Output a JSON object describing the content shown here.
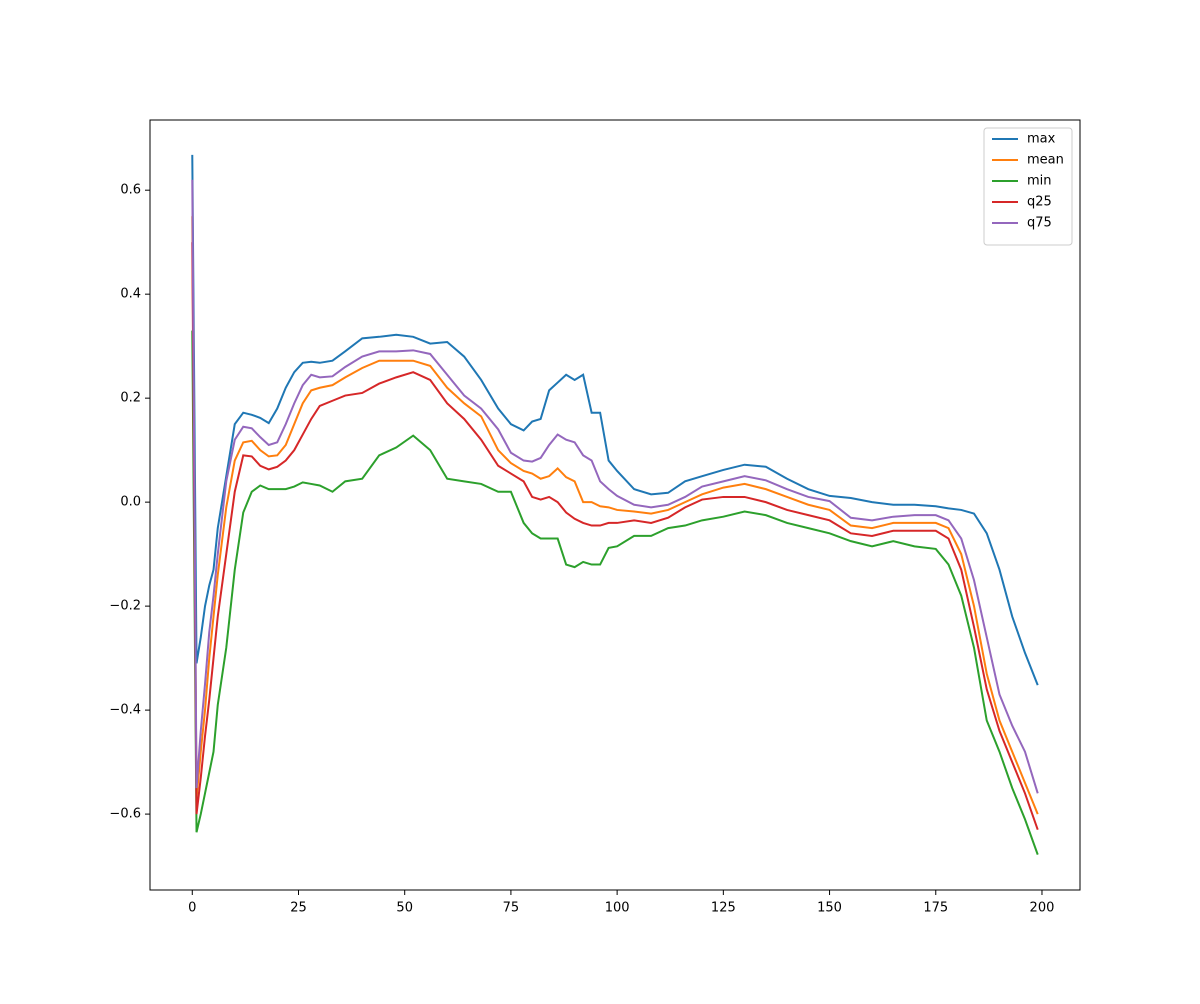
{
  "chart_data": {
    "type": "line",
    "x": [
      0,
      1,
      2,
      3,
      4,
      5,
      6,
      8,
      10,
      12,
      14,
      16,
      18,
      20,
      22,
      24,
      26,
      28,
      30,
      33,
      36,
      40,
      44,
      48,
      52,
      56,
      60,
      64,
      68,
      72,
      75,
      78,
      80,
      82,
      84,
      86,
      88,
      90,
      92,
      94,
      96,
      98,
      100,
      104,
      108,
      112,
      116,
      120,
      125,
      130,
      135,
      140,
      145,
      150,
      155,
      160,
      165,
      170,
      175,
      178,
      181,
      184,
      187,
      190,
      193,
      196,
      199
    ],
    "series": [
      {
        "name": "max",
        "color": "#1f77b4",
        "values": [
          0.668,
          -0.31,
          -0.26,
          -0.2,
          -0.16,
          -0.13,
          -0.05,
          0.05,
          0.15,
          0.172,
          0.168,
          0.162,
          0.152,
          0.18,
          0.22,
          0.25,
          0.268,
          0.27,
          0.268,
          0.272,
          0.29,
          0.315,
          0.318,
          0.322,
          0.318,
          0.305,
          0.308,
          0.28,
          0.235,
          0.18,
          0.15,
          0.138,
          0.155,
          0.16,
          0.215,
          0.23,
          0.245,
          0.235,
          0.245,
          0.172,
          0.172,
          0.08,
          0.06,
          0.025,
          0.015,
          0.018,
          0.04,
          0.05,
          0.062,
          0.072,
          0.068,
          0.045,
          0.025,
          0.012,
          0.008,
          0.0,
          -0.005,
          -0.005,
          -0.008,
          -0.012,
          -0.015,
          -0.022,
          -0.06,
          -0.13,
          -0.22,
          -0.29,
          -0.352
        ]
      },
      {
        "name": "mean",
        "color": "#ff7f0e",
        "values": [
          0.55,
          -0.57,
          -0.48,
          -0.4,
          -0.3,
          -0.22,
          -0.14,
          -0.01,
          0.08,
          0.115,
          0.118,
          0.1,
          0.088,
          0.09,
          0.11,
          0.15,
          0.19,
          0.215,
          0.22,
          0.225,
          0.24,
          0.258,
          0.272,
          0.272,
          0.272,
          0.262,
          0.22,
          0.19,
          0.165,
          0.1,
          0.075,
          0.06,
          0.055,
          0.045,
          0.05,
          0.065,
          0.048,
          0.04,
          0.0,
          0.0,
          -0.008,
          -0.01,
          -0.015,
          -0.018,
          -0.022,
          -0.015,
          0.0,
          0.015,
          0.028,
          0.035,
          0.025,
          0.01,
          -0.005,
          -0.015,
          -0.045,
          -0.05,
          -0.04,
          -0.04,
          -0.04,
          -0.05,
          -0.1,
          -0.2,
          -0.33,
          -0.42,
          -0.48,
          -0.54,
          -0.6
        ]
      },
      {
        "name": "min",
        "color": "#2ca02c",
        "values": [
          0.33,
          -0.635,
          -0.6,
          -0.56,
          -0.52,
          -0.48,
          -0.39,
          -0.28,
          -0.13,
          -0.02,
          0.02,
          0.032,
          0.025,
          0.025,
          0.025,
          0.03,
          0.038,
          0.035,
          0.032,
          0.02,
          0.04,
          0.045,
          0.09,
          0.105,
          0.128,
          0.1,
          0.045,
          0.04,
          0.035,
          0.02,
          0.02,
          -0.04,
          -0.06,
          -0.07,
          -0.07,
          -0.07,
          -0.12,
          -0.125,
          -0.115,
          -0.12,
          -0.12,
          -0.088,
          -0.085,
          -0.065,
          -0.065,
          -0.05,
          -0.045,
          -0.035,
          -0.028,
          -0.018,
          -0.025,
          -0.04,
          -0.05,
          -0.06,
          -0.075,
          -0.085,
          -0.075,
          -0.085,
          -0.09,
          -0.12,
          -0.18,
          -0.28,
          -0.42,
          -0.48,
          -0.55,
          -0.61,
          -0.678
        ]
      },
      {
        "name": "q25",
        "color": "#d62728",
        "values": [
          0.5,
          -0.6,
          -0.53,
          -0.45,
          -0.38,
          -0.3,
          -0.22,
          -0.1,
          0.02,
          0.09,
          0.088,
          0.07,
          0.063,
          0.068,
          0.08,
          0.1,
          0.13,
          0.16,
          0.185,
          0.195,
          0.205,
          0.21,
          0.228,
          0.24,
          0.25,
          0.235,
          0.19,
          0.16,
          0.12,
          0.07,
          0.055,
          0.04,
          0.01,
          0.005,
          0.01,
          0.0,
          -0.02,
          -0.032,
          -0.04,
          -0.045,
          -0.045,
          -0.04,
          -0.04,
          -0.035,
          -0.04,
          -0.03,
          -0.01,
          0.005,
          0.01,
          0.01,
          0.0,
          -0.015,
          -0.025,
          -0.035,
          -0.06,
          -0.065,
          -0.055,
          -0.055,
          -0.055,
          -0.07,
          -0.13,
          -0.24,
          -0.36,
          -0.44,
          -0.5,
          -0.56,
          -0.63
        ]
      },
      {
        "name": "q75",
        "color": "#9467bd",
        "values": [
          0.62,
          -0.55,
          -0.44,
          -0.35,
          -0.25,
          -0.18,
          -0.1,
          0.04,
          0.12,
          0.145,
          0.142,
          0.125,
          0.11,
          0.115,
          0.15,
          0.19,
          0.225,
          0.245,
          0.24,
          0.242,
          0.26,
          0.28,
          0.29,
          0.29,
          0.292,
          0.285,
          0.245,
          0.205,
          0.18,
          0.14,
          0.095,
          0.08,
          0.078,
          0.085,
          0.11,
          0.13,
          0.12,
          0.115,
          0.09,
          0.08,
          0.04,
          0.025,
          0.012,
          -0.005,
          -0.01,
          -0.005,
          0.01,
          0.03,
          0.04,
          0.05,
          0.042,
          0.025,
          0.01,
          0.002,
          -0.03,
          -0.035,
          -0.028,
          -0.025,
          -0.025,
          -0.035,
          -0.07,
          -0.15,
          -0.26,
          -0.37,
          -0.43,
          -0.48,
          -0.56
        ]
      }
    ],
    "xlim": [
      -9.95,
      208.95
    ],
    "ylim": [
      -0.746,
      0.735
    ],
    "xticks": [
      0,
      25,
      50,
      75,
      100,
      125,
      150,
      175,
      200
    ],
    "yticks": [
      {
        "value": -0.6,
        "label": "−0.6"
      },
      {
        "value": -0.4,
        "label": "−0.4"
      },
      {
        "value": -0.2,
        "label": "−0.2"
      },
      {
        "value": 0.0,
        "label": "0.0"
      },
      0.2,
      0.4,
      0.6
    ],
    "legend": "upper right"
  }
}
